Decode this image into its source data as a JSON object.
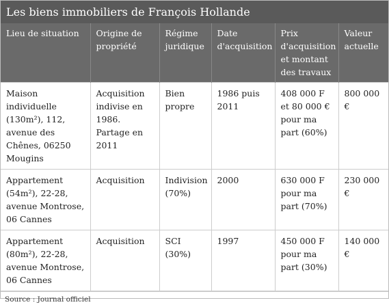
{
  "title": "Les biens immobiliers de François Hollande",
  "table": {
    "headers": [
      "Lieu de situation",
      "Origine de propriété",
      "Régime juridique",
      "Date d'acquisition",
      "Prix d'acquisition et montant des travaux",
      "Valeur actuelle"
    ],
    "rows": [
      [
        "Maison individuelle (130m²), 112, avenue des Chênes, 06250 Mougins",
        "Acquisition indivise en 1986. Partage en 2011",
        "Bien propre",
        "1986 puis 2011",
        "408 000 F et 80 000 € pour ma part (60%)",
        "800 000 €"
      ],
      [
        "Appartement (54m²), 22-28, avenue Montrose, 06 Cannes",
        "Acquisition",
        "Indivision (70%)",
        "2000",
        "630 000 F pour ma part (70%)",
        "230 000 €"
      ],
      [
        "Appartement (80m²), 22-28, avenue Montrose, 06 Cannes",
        "Acquisition",
        "SCI (30%)",
        "1997",
        "450 000 F pour ma part (30%)",
        "140 000 €"
      ]
    ]
  },
  "source": "Source : Journal officiel"
}
